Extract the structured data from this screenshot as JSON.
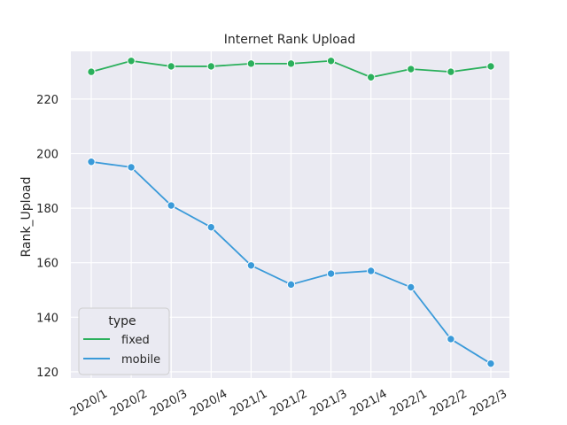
{
  "chart_data": {
    "type": "line",
    "title": "Internet Rank Upload",
    "xlabel": "",
    "ylabel": "Rank_Upload",
    "categories": [
      "2020/1",
      "2020/2",
      "2020/3",
      "2020/4",
      "2021/1",
      "2021/2",
      "2021/3",
      "2021/4",
      "2022/1",
      "2022/2",
      "2022/3"
    ],
    "ylim": [
      117.7,
      237.5
    ],
    "yticks": [
      120,
      140,
      160,
      180,
      200,
      220
    ],
    "grid": true,
    "legend": {
      "title": "type",
      "placement": "lower-left"
    },
    "series": [
      {
        "name": "fixed",
        "color": "#2bb05c",
        "values": [
          230,
          234,
          232,
          232,
          233,
          233,
          234,
          228,
          231,
          230,
          232
        ]
      },
      {
        "name": "mobile",
        "color": "#3a9ad9",
        "values": [
          197,
          195,
          181,
          173,
          159,
          152,
          156,
          157,
          151,
          132,
          123
        ]
      }
    ],
    "background": "#eaeaf2",
    "grid_color": "#ffffff"
  }
}
